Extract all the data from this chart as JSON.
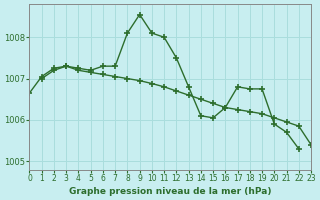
{
  "title": "Graphe pression niveau de la mer (hPa)",
  "background_color": "#c8eef0",
  "grid_color": "#aadddd",
  "line_color": "#2d6e2d",
  "series1_x": [
    1,
    2,
    3,
    4,
    5,
    6,
    7,
    8,
    9,
    10,
    11,
    12,
    13,
    14,
    15,
    16,
    17,
    18,
    19,
    20,
    21,
    22
  ],
  "series1_y": [
    1007.0,
    1007.2,
    1007.3,
    1007.25,
    1007.2,
    1007.3,
    1007.3,
    1008.1,
    1008.55,
    1008.1,
    1008.0,
    1007.5,
    1006.8,
    1006.1,
    1006.05,
    1006.3,
    1006.8,
    1006.75,
    1006.75,
    1005.9,
    1005.7,
    1005.3
  ],
  "series2_x": [
    0,
    1,
    2,
    3,
    4,
    5,
    6,
    7,
    8,
    9,
    10,
    11,
    12,
    13,
    14,
    15,
    16,
    17,
    18,
    19,
    20,
    21,
    22,
    23
  ],
  "series2_y": [
    1006.65,
    1007.05,
    1007.25,
    1007.3,
    1007.2,
    1007.15,
    1007.1,
    1007.05,
    1007.0,
    1006.95,
    1006.88,
    1006.8,
    1006.7,
    1006.6,
    1006.5,
    1006.4,
    1006.3,
    1006.25,
    1006.2,
    1006.15,
    1006.05,
    1005.95,
    1005.85,
    1005.4
  ],
  "xlim": [
    0,
    23
  ],
  "ylim": [
    1004.8,
    1008.8
  ],
  "yticks": [
    1005,
    1006,
    1007,
    1008
  ],
  "xticks": [
    0,
    1,
    2,
    3,
    4,
    5,
    6,
    7,
    8,
    9,
    10,
    11,
    12,
    13,
    14,
    15,
    16,
    17,
    18,
    19,
    20,
    21,
    22,
    23
  ]
}
